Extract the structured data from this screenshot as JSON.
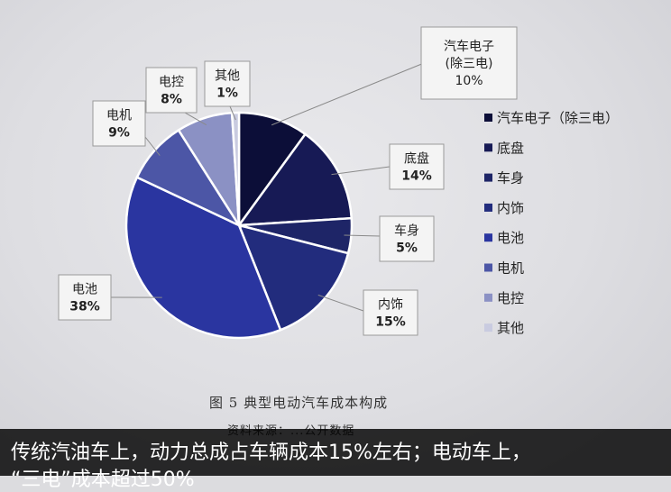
{
  "chart_data": {
    "type": "pie",
    "categories": [
      "汽车电子（除三电）",
      "底盘",
      "车身",
      "内饰",
      "电池",
      "电机",
      "电控",
      "其他"
    ],
    "values": [
      10,
      14,
      5,
      15,
      38,
      9,
      8,
      1
    ],
    "units": "%",
    "colors": [
      "#0c0e38",
      "#171a55",
      "#1e2567",
      "#222c7d",
      "#2a35a0",
      "#4c56a6",
      "#8b91c4",
      "#c9cbe0"
    ],
    "slice_labels": [
      {
        "lines": [
          "汽车电子",
          "(除三电)",
          "10%"
        ]
      },
      {
        "lines": [
          "底盘",
          "14%"
        ]
      },
      {
        "lines": [
          "车身",
          "5%"
        ]
      },
      {
        "lines": [
          "内饰",
          "15%"
        ]
      },
      {
        "lines": [
          "电池",
          "38%"
        ]
      },
      {
        "lines": [
          "电机",
          "9%"
        ]
      },
      {
        "lines": [
          "电控",
          "8%"
        ]
      },
      {
        "lines": [
          "其他",
          "1%"
        ]
      }
    ],
    "legend": [
      "汽车电子（除三电）",
      "底盘",
      "车身",
      "内饰",
      "电池",
      "电机",
      "电控",
      "其他"
    ],
    "legend_position": "right",
    "caption": "图 5 典型电动汽车成本构成",
    "caption_partial": "资料来源：...公开数据"
  },
  "subtitle": {
    "line1": "传统汽油车上，动力总成占车辆成本15%左右；电动车上，",
    "line2": "“三电”成本超过50%"
  }
}
